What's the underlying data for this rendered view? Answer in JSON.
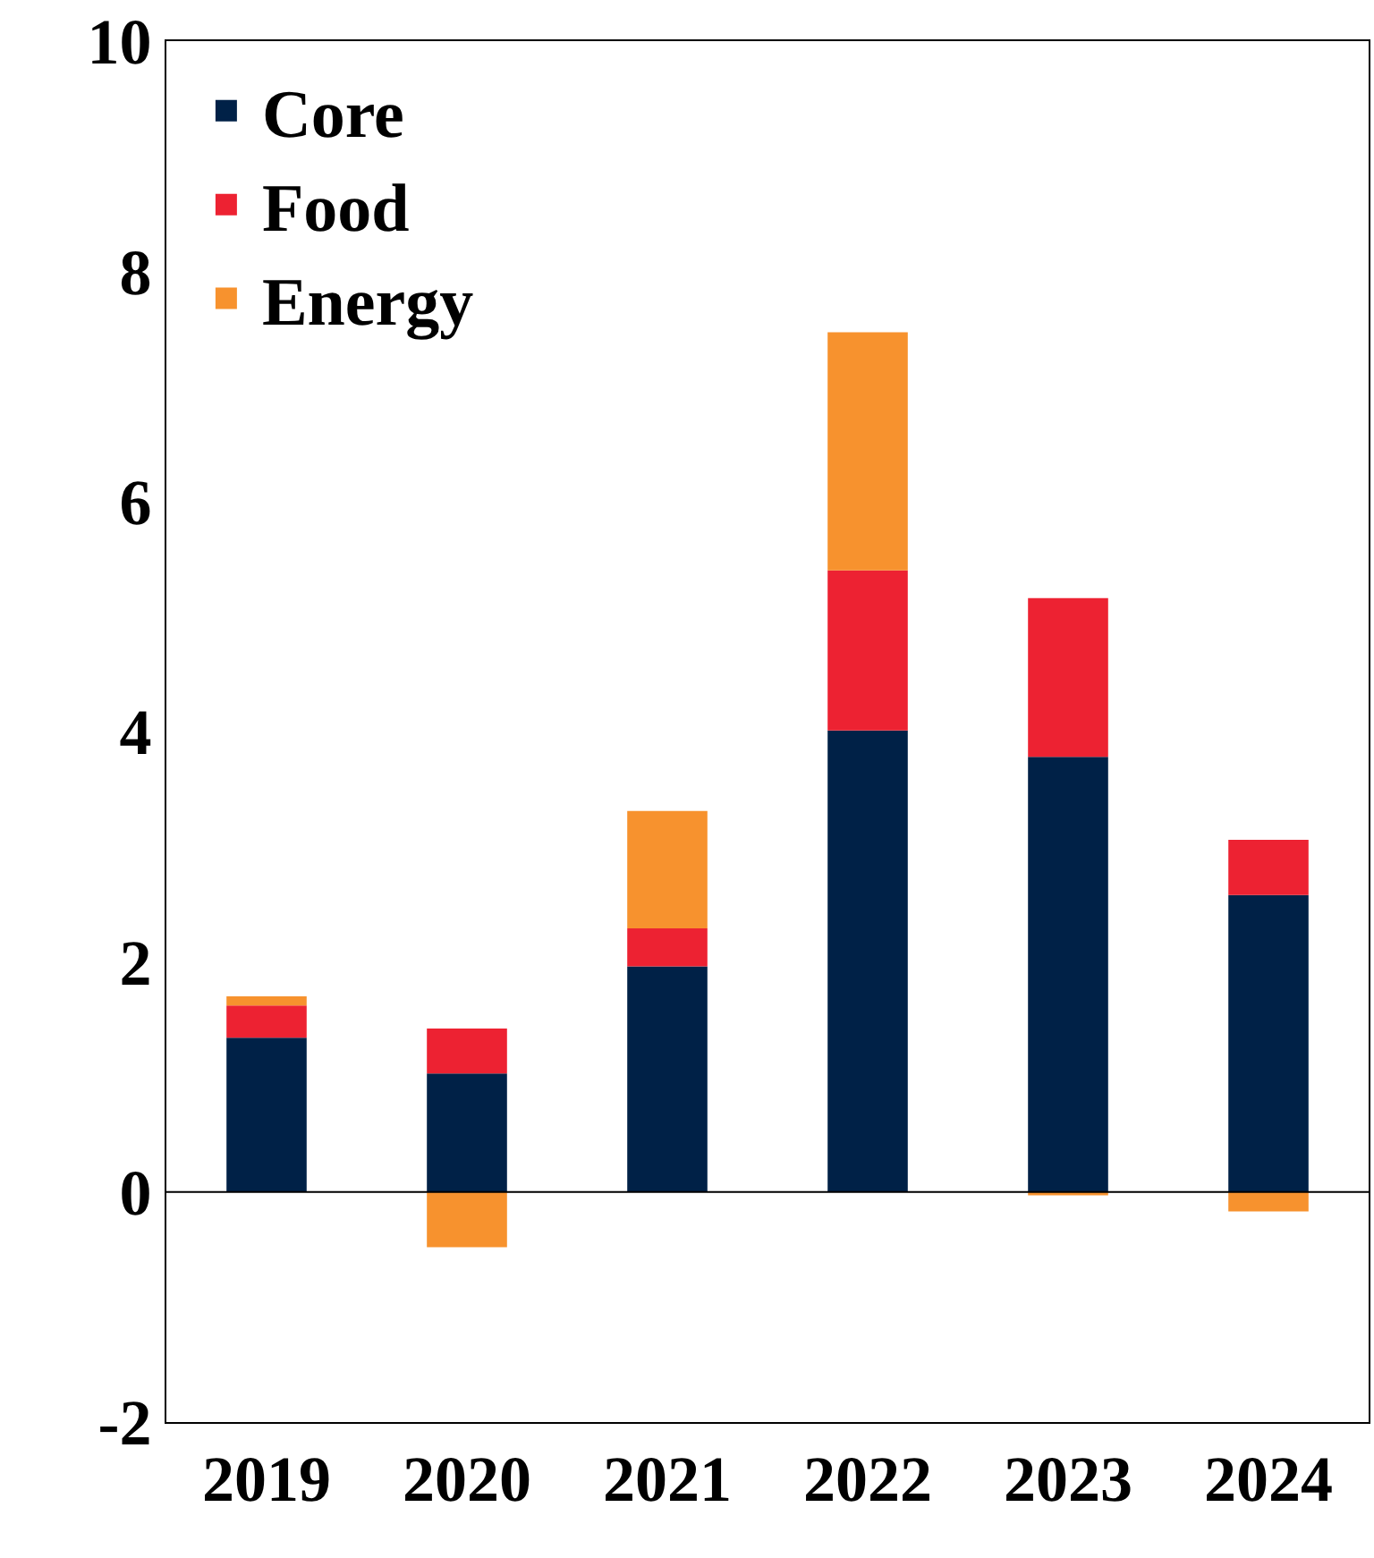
{
  "chart_data": {
    "type": "bar",
    "stacked": true,
    "categories": [
      "2019",
      "2020",
      "2021",
      "2022",
      "2023",
      "2024"
    ],
    "series": [
      {
        "name": "Core",
        "color": "#002147",
        "values": [
          1.34,
          1.03,
          1.96,
          4.01,
          3.78,
          2.58
        ]
      },
      {
        "name": "Food",
        "color": "#ed2232",
        "values": [
          0.28,
          0.39,
          0.33,
          1.39,
          1.38,
          0.48
        ]
      },
      {
        "name": "Energy",
        "color": "#f7922e",
        "values": [
          0.08,
          -0.48,
          1.02,
          2.07,
          -0.03,
          -0.17
        ]
      }
    ],
    "ylim": [
      -2,
      10
    ],
    "yticks": [
      -2,
      0,
      2,
      4,
      6,
      8,
      10
    ],
    "legend": "top left",
    "ref_lines": [
      {
        "axis": "y",
        "value": 0,
        "color": "#000000"
      }
    ]
  }
}
